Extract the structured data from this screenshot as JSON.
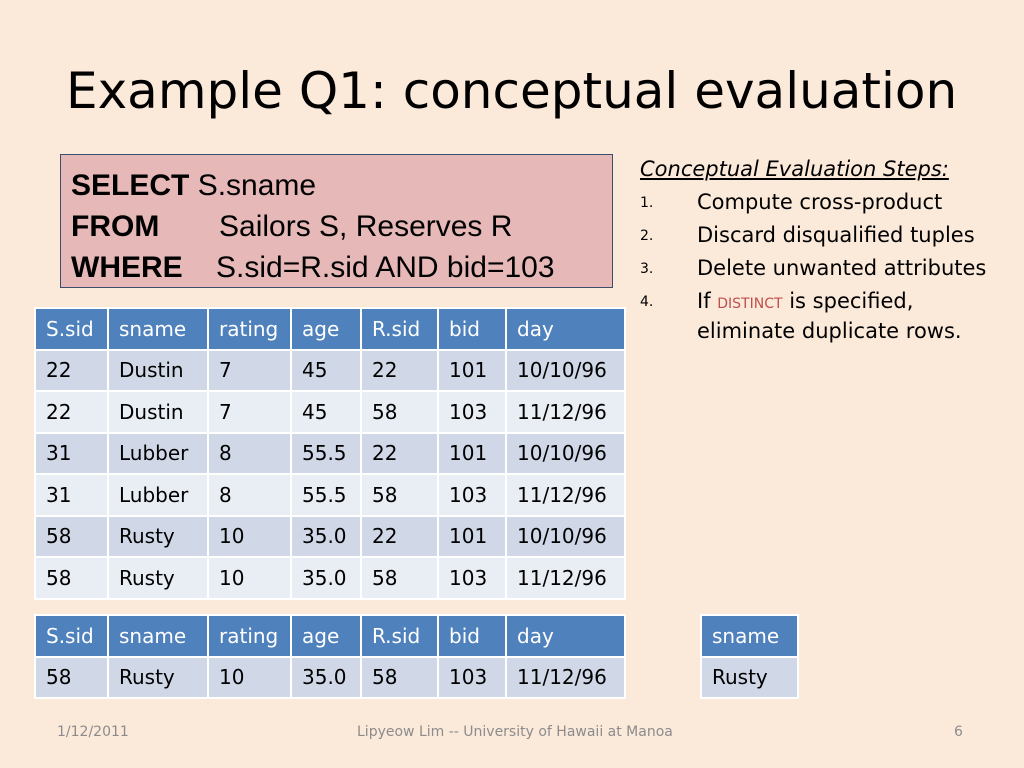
{
  "title": "Example Q1: conceptual evaluation",
  "sql": {
    "select_kw": "SELECT",
    "select_val": "S.sname",
    "from_kw": "FROM",
    "from_val": "Sailors S, Reserves R",
    "where_kw": "WHERE",
    "where_val": "S.sid=R.sid AND bid=103"
  },
  "cross_product": {
    "headers": [
      "S.sid",
      "sname",
      "rating",
      "age",
      "R.sid",
      "bid",
      "day"
    ],
    "rows": [
      [
        "22",
        "Dustin",
        "7",
        "45",
        "22",
        "101",
        "10/10/96"
      ],
      [
        "22",
        "Dustin",
        "7",
        "45",
        "58",
        "103",
        "11/12/96"
      ],
      [
        "31",
        "Lubber",
        "8",
        "55.5",
        "22",
        "101",
        "10/10/96"
      ],
      [
        "31",
        "Lubber",
        "8",
        "55.5",
        "58",
        "103",
        "11/12/96"
      ],
      [
        "58",
        "Rusty",
        "10",
        "35.0",
        "22",
        "101",
        "10/10/96"
      ],
      [
        "58",
        "Rusty",
        "10",
        "35.0",
        "58",
        "103",
        "11/12/96"
      ]
    ]
  },
  "qualified": {
    "headers": [
      "S.sid",
      "sname",
      "rating",
      "age",
      "R.sid",
      "bid",
      "day"
    ],
    "rows": [
      [
        "58",
        "Rusty",
        "10",
        "35.0",
        "58",
        "103",
        "11/12/96"
      ]
    ]
  },
  "projected": {
    "headers": [
      "sname"
    ],
    "rows": [
      [
        "Rusty"
      ]
    ]
  },
  "steps": {
    "heading": "Conceptual Evaluation Steps:",
    "items": [
      {
        "num": "1.",
        "text": "Compute cross-product"
      },
      {
        "num": "2.",
        "text": "Discard disqualified tuples"
      },
      {
        "num": "3.",
        "text": "Delete unwanted attributes"
      },
      {
        "num": "4.",
        "pre": "If ",
        "keyword": "DISTINCT",
        "post": " is specified, eliminate duplicate rows."
      }
    ]
  },
  "footer": {
    "date": "1/12/2011",
    "center": "Lipyeow Lim -- University of Hawaii at Manoa",
    "page": "6"
  },
  "colors": {
    "background": "#fbe9da",
    "header_fill": "#4f81bd",
    "row_odd": "#d0d8e8",
    "row_even": "#e9edf4",
    "sql_box_fill": "#e6b8b7",
    "distinct_text": "#c0504d"
  }
}
